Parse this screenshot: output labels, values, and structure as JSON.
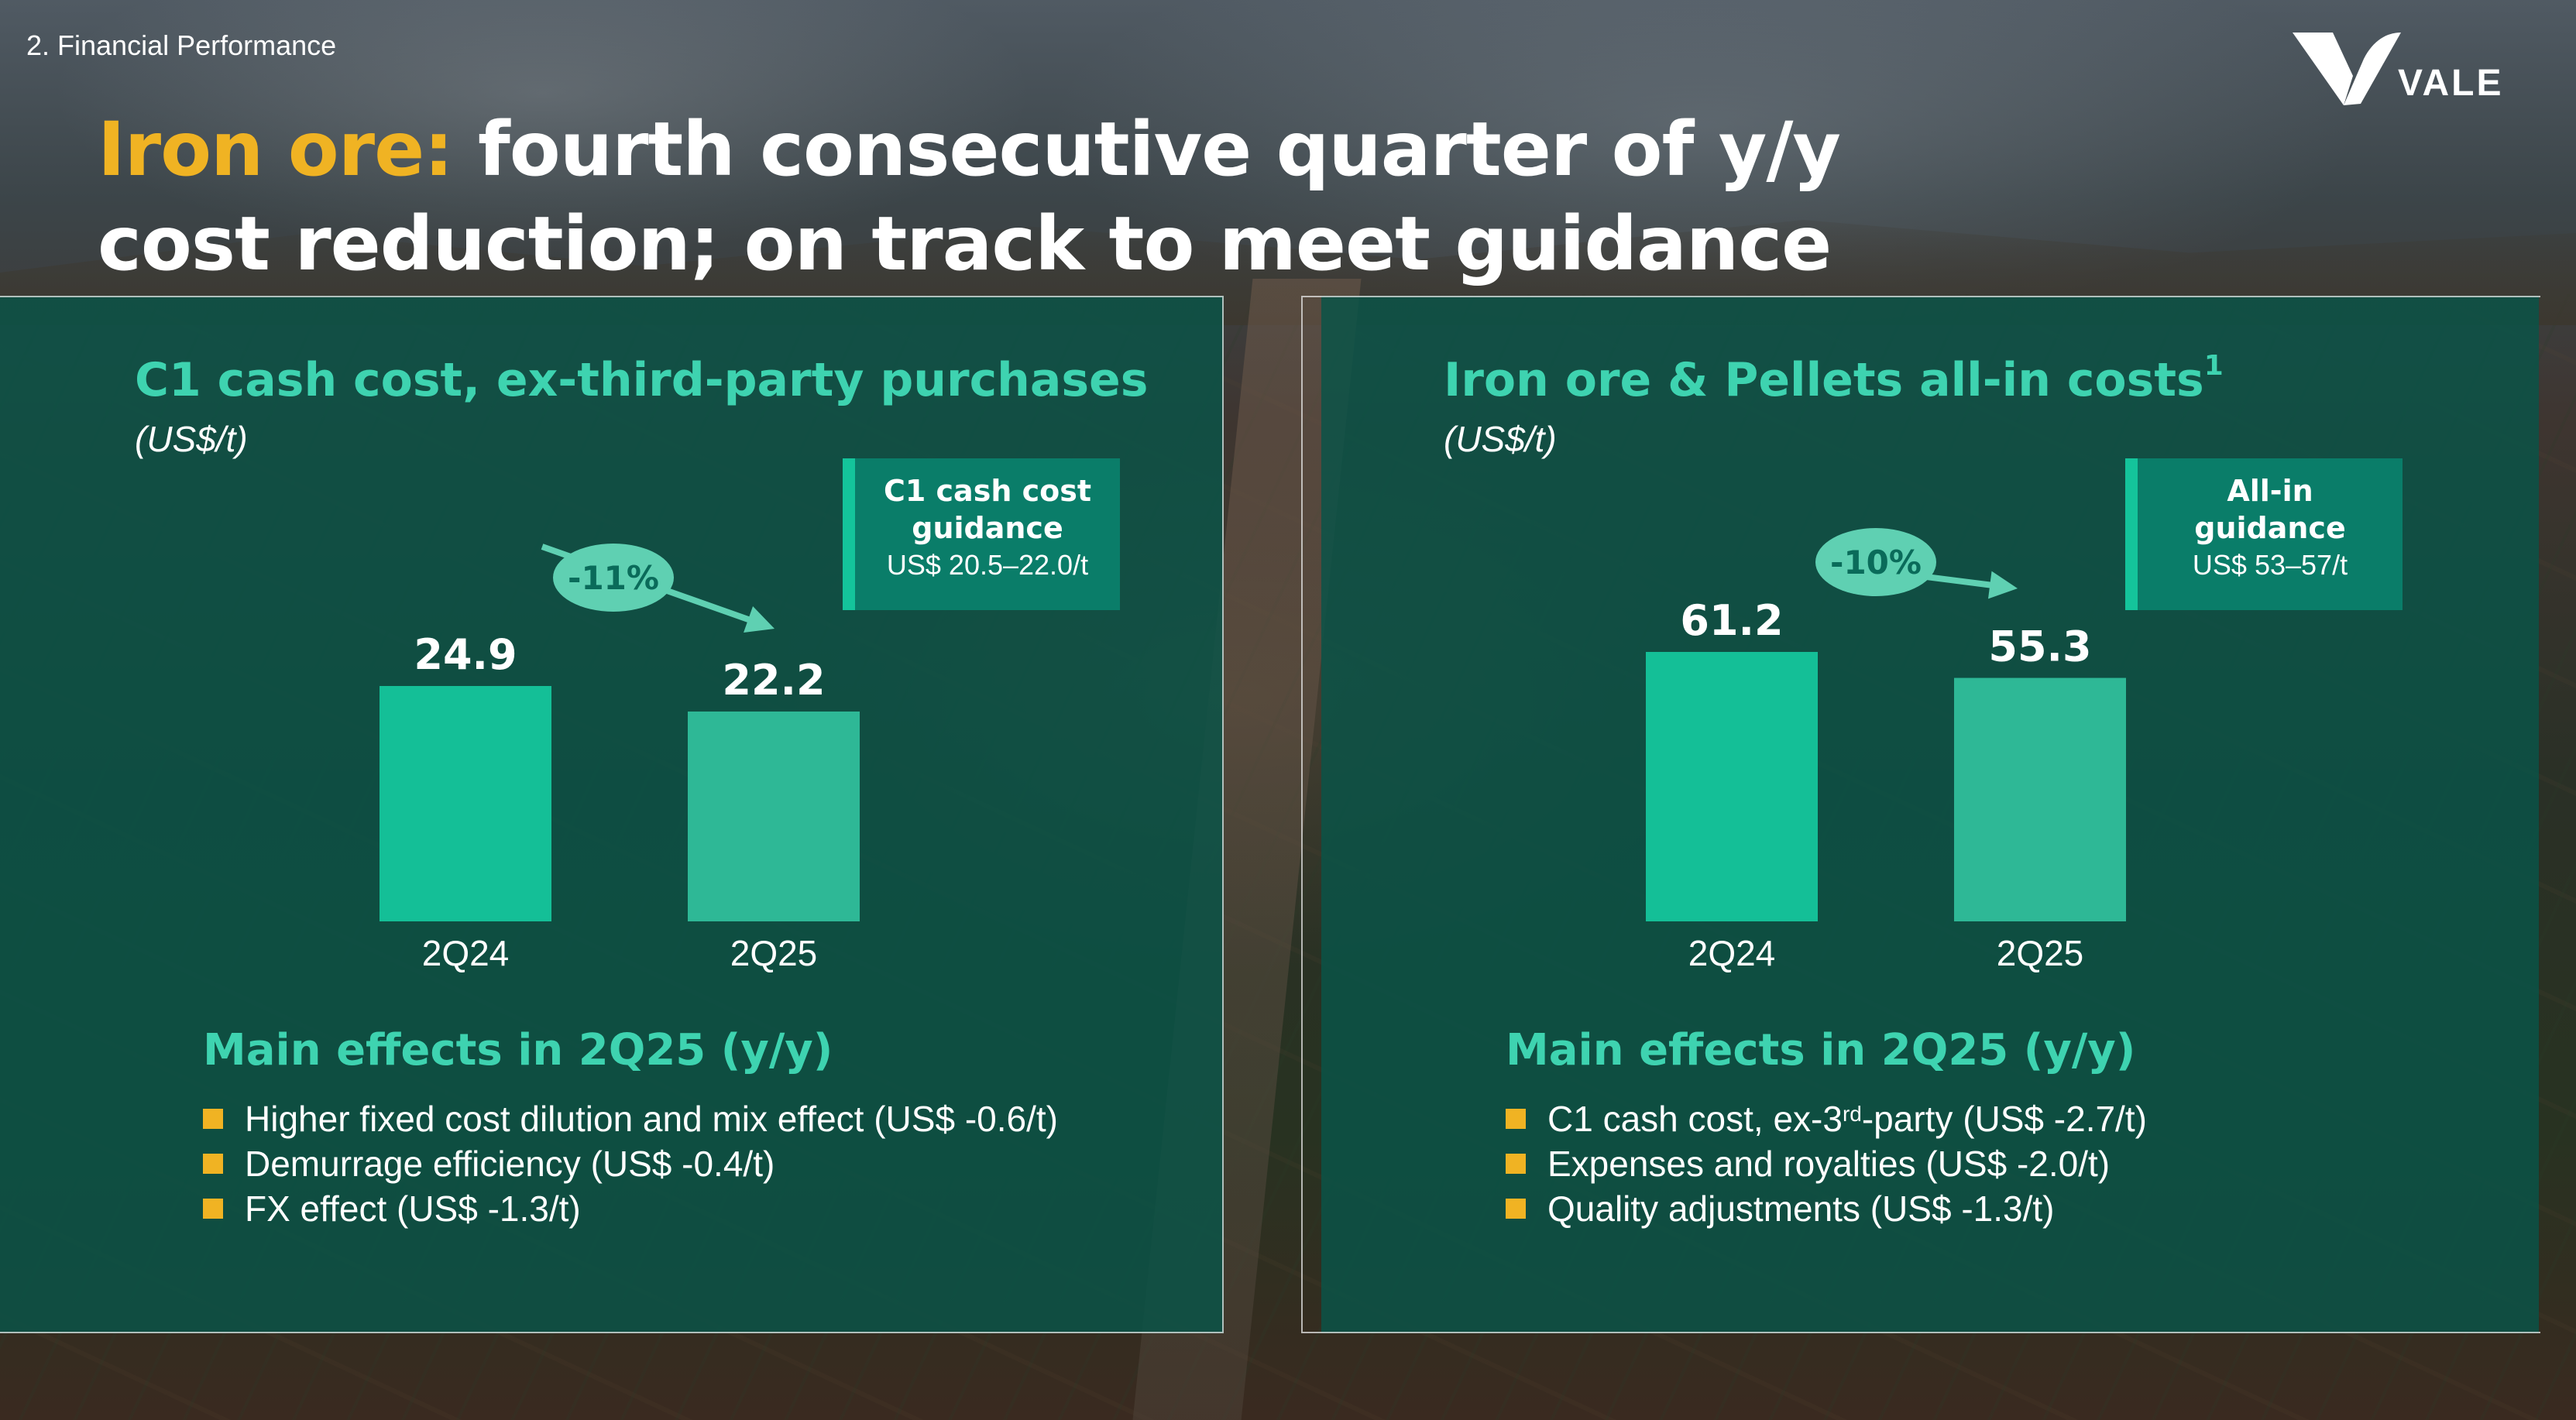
{
  "section_label": "2. Financial Performance",
  "logo_text": "VALE",
  "title": {
    "accent": "Iron ore:",
    "line1_rest": "fourth consecutive quarter of y/y",
    "line2": "cost reduction; on track to meet guidance"
  },
  "colors": {
    "accent_yellow": "#f0b323",
    "teal_title": "#3ed3b0",
    "bar_2q24": "#14bf97",
    "bar_2q25": "#2eb896",
    "badge": "#5fd0b2",
    "panel": "#0a5448"
  },
  "left_panel": {
    "title": "C1 cash cost, ex-third-party purchases",
    "unit": "(US$/t)",
    "guidance": {
      "title_line1": "C1 cash cost",
      "title_line2": "guidance",
      "value": "US$ 20.5–22.0/t"
    },
    "change_badge": "-11%",
    "effects_title": "Main effects in 2Q25 (y/y)",
    "effects": [
      "Higher fixed cost dilution and mix effect (US$ -0.6/t)",
      "Demurrage efficiency (US$ -0.4/t)",
      "FX effect (US$ -1.3/t)"
    ]
  },
  "right_panel": {
    "title": "Iron ore & Pellets all-in costs",
    "title_sup": "1",
    "unit": "(US$/t)",
    "guidance": {
      "title_line1": "All-in",
      "title_line2": "guidance",
      "value": "US$ 53–57/t"
    },
    "change_badge": "-10%",
    "effects_title": "Main effects in 2Q25 (y/y)",
    "effects": [
      {
        "pre": "C1 cash cost, ex-3",
        "sup": "rd",
        "post": "-party (US$ -2.7/t)"
      },
      {
        "pre": "Expenses and royalties (US$ -2.0/t)",
        "sup": "",
        "post": ""
      },
      {
        "pre": "Quality adjustments (US$ -1.3/t)",
        "sup": "",
        "post": ""
      }
    ]
  },
  "chart_data": [
    {
      "type": "bar",
      "title": "C1 cash cost, ex-third-party purchases",
      "ylabel": "(US$/t)",
      "categories": [
        "2Q24",
        "2Q25"
      ],
      "values": [
        24.9,
        22.2
      ],
      "data_labels": [
        "24.9",
        "22.2"
      ],
      "annotation": "-11%",
      "ylim": [
        0,
        24.9
      ]
    },
    {
      "type": "bar",
      "title": "Iron ore & Pellets all-in costs",
      "ylabel": "(US$/t)",
      "categories": [
        "2Q24",
        "2Q25"
      ],
      "values": [
        61.2,
        55.3
      ],
      "data_labels": [
        "61.2",
        "55.3"
      ],
      "annotation": "-10%",
      "ylim": [
        0,
        61.2
      ]
    }
  ]
}
